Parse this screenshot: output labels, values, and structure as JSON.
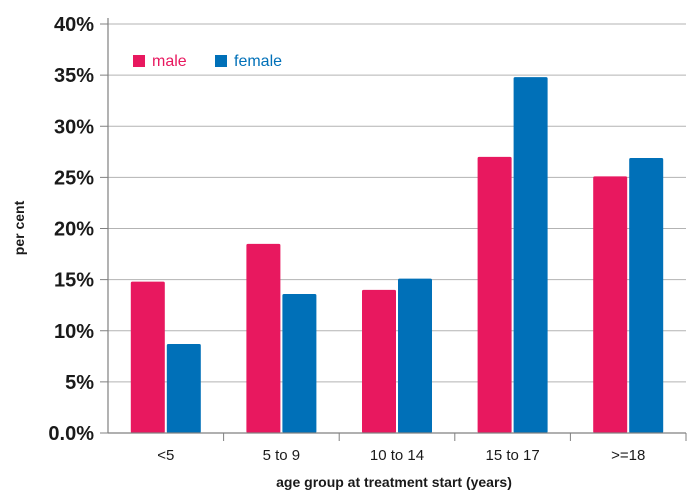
{
  "chart_data": {
    "type": "bar",
    "title": "",
    "xlabel": "age group at treatment start (years)",
    "ylabel": "per cent",
    "categories": [
      "<5",
      "5 to 9",
      "10 to 14",
      "15 to 17",
      ">=18"
    ],
    "series": [
      {
        "name": "male",
        "color": "#e8185f",
        "values": [
          14.8,
          18.5,
          14.0,
          27.0,
          25.1
        ]
      },
      {
        "name": "female",
        "color": "#0070b8",
        "values": [
          8.7,
          13.6,
          15.1,
          34.8,
          26.9
        ]
      }
    ],
    "ylim": [
      0,
      40
    ],
    "yticks": [
      0,
      5,
      10,
      15,
      20,
      25,
      30,
      35,
      40
    ],
    "ytick_labels": [
      "0.0%",
      "5%",
      "10%",
      "15%",
      "20%",
      "25%",
      "30%",
      "35%",
      "40%"
    ],
    "grid": true,
    "legend_position": "top-left"
  }
}
